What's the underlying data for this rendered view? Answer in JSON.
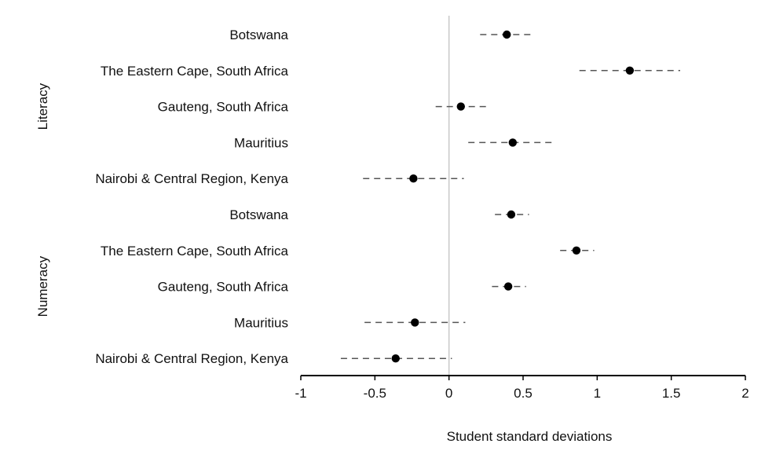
{
  "chart_data": {
    "type": "scatter",
    "subtype": "forest-plot-with-confidence-intervals",
    "title": "",
    "xlabel": "Student standard deviations",
    "ylabel": "",
    "xlim": [
      -1,
      2
    ],
    "xticks": [
      -1,
      -0.5,
      0,
      0.5,
      1,
      1.5,
      2
    ],
    "xtick_labels": [
      "-1",
      "-0.5",
      "0",
      "0.5",
      "1",
      "1.5",
      "2"
    ],
    "zero_line": 0,
    "grid": false,
    "legend": "none",
    "colors": {
      "point": "#000000",
      "interval": "#555555",
      "zero_line": "#c8c8c8",
      "axis": "#000000"
    },
    "groups": [
      {
        "name": "Literacy",
        "rows": [
          {
            "label": "Botswana",
            "estimate": 0.39,
            "ci_low": 0.21,
            "ci_high": 0.58
          },
          {
            "label": "The Eastern Cape, South Africa",
            "estimate": 1.22,
            "ci_low": 0.88,
            "ci_high": 1.56
          },
          {
            "label": "Gauteng, South Africa",
            "estimate": 0.08,
            "ci_low": -0.09,
            "ci_high": 0.26
          },
          {
            "label": "Mauritius",
            "estimate": 0.43,
            "ci_low": 0.13,
            "ci_high": 0.7
          },
          {
            "label": "Nairobi & Central Region, Kenya",
            "estimate": -0.24,
            "ci_low": -0.58,
            "ci_high": 0.1
          }
        ]
      },
      {
        "name": "Numeracy",
        "rows": [
          {
            "label": "Botswana",
            "estimate": 0.42,
            "ci_low": 0.31,
            "ci_high": 0.54
          },
          {
            "label": "The Eastern Cape, South Africa",
            "estimate": 0.86,
            "ci_low": 0.75,
            "ci_high": 0.98
          },
          {
            "label": "Gauteng, South Africa",
            "estimate": 0.4,
            "ci_low": 0.29,
            "ci_high": 0.52
          },
          {
            "label": "Mauritius",
            "estimate": -0.23,
            "ci_low": -0.57,
            "ci_high": 0.11
          },
          {
            "label": "Nairobi & Central Region, Kenya",
            "estimate": -0.36,
            "ci_low": -0.73,
            "ci_high": 0.02
          }
        ]
      }
    ]
  }
}
